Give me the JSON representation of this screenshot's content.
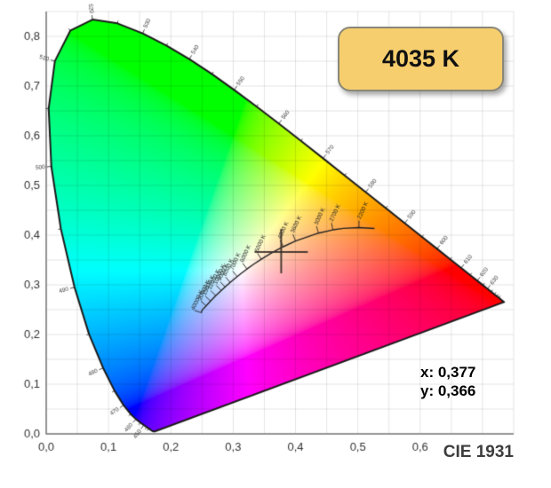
{
  "badge": {
    "label": "4035 K",
    "fill": "#f6ce6e",
    "border": "#8b8878",
    "text_color": "#111111"
  },
  "readout": {
    "x": "x: 0,377",
    "y": "y: 0,366"
  },
  "footer": {
    "label": "CIE 1931"
  },
  "chart_data": {
    "type": "scatter",
    "title": "CIE 1931",
    "xlabel": "",
    "ylabel": "",
    "xlim": [
      0,
      0.75
    ],
    "ylim": [
      0,
      0.85
    ],
    "grid_step": 0.05,
    "grid_on": true,
    "x_ticks": [
      {
        "v": 0.0,
        "label": "0,0"
      },
      {
        "v": 0.1,
        "label": "0,1"
      },
      {
        "v": 0.2,
        "label": "0,2"
      },
      {
        "v": 0.3,
        "label": "0,3"
      },
      {
        "v": 0.4,
        "label": "0,4"
      },
      {
        "v": 0.5,
        "label": "0,5"
      },
      {
        "v": 0.6,
        "label": "0,6"
      }
    ],
    "y_ticks": [
      {
        "v": 0.0,
        "label": "0,0"
      },
      {
        "v": 0.1,
        "label": "0,1"
      },
      {
        "v": 0.2,
        "label": "0,2"
      },
      {
        "v": 0.3,
        "label": "0,3"
      },
      {
        "v": 0.4,
        "label": "0,4"
      },
      {
        "v": 0.5,
        "label": "0,5"
      },
      {
        "v": 0.6,
        "label": "0,6"
      },
      {
        "v": 0.7,
        "label": "0,7"
      },
      {
        "v": 0.8,
        "label": "0,8"
      }
    ],
    "marker": {
      "x": 0.377,
      "y": 0.366,
      "cct_label": "4035 K"
    },
    "planckian_locus": {
      "points": [
        {
          "T": 2000,
          "x": 0.5267,
          "y": 0.4133
        },
        {
          "T": 2200,
          "x": 0.5018,
          "y": 0.4152
        },
        {
          "T": 2500,
          "x": 0.477,
          "y": 0.4137
        },
        {
          "T": 2700,
          "x": 0.4599,
          "y": 0.4106
        },
        {
          "T": 3000,
          "x": 0.4369,
          "y": 0.4041
        },
        {
          "T": 3600,
          "x": 0.4,
          "y": 0.3881
        },
        {
          "T": 4000,
          "x": 0.3805,
          "y": 0.3768
        },
        {
          "T": 4500,
          "x": 0.3608,
          "y": 0.3636
        },
        {
          "T": 5000,
          "x": 0.3451,
          "y": 0.3516
        },
        {
          "T": 5500,
          "x": 0.3324,
          "y": 0.341
        },
        {
          "T": 6000,
          "x": 0.3221,
          "y": 0.3318
        },
        {
          "T": 6500,
          "x": 0.3135,
          "y": 0.3237
        },
        {
          "T": 7000,
          "x": 0.3064,
          "y": 0.3166
        },
        {
          "T": 8000,
          "x": 0.2952,
          "y": 0.3048
        },
        {
          "T": 9000,
          "x": 0.2869,
          "y": 0.2956
        },
        {
          "T": 10000,
          "x": 0.2807,
          "y": 0.2884
        },
        {
          "T": 12000,
          "x": 0.2719,
          "y": 0.2782
        },
        {
          "T": 15000,
          "x": 0.2637,
          "y": 0.2673
        },
        {
          "T": 20000,
          "x": 0.2565,
          "y": 0.2577
        },
        {
          "T": 30000,
          "x": 0.2501,
          "y": 0.2489
        },
        {
          "T": 40000,
          "x": 0.2487,
          "y": 0.2438
        }
      ],
      "tick_labels": [
        {
          "T": 40000,
          "label": "40000 K"
        },
        {
          "T": 20000,
          "label": "20000 K"
        },
        {
          "T": 15000,
          "label": "15000 K"
        },
        {
          "T": 12000,
          "label": "12000 K"
        },
        {
          "T": 10000,
          "label": "10000 K"
        },
        {
          "T": 9000,
          "label": "9000 K"
        },
        {
          "T": 8000,
          "label": "8000 K"
        },
        {
          "T": 7000,
          "label": "7000 K"
        },
        {
          "T": 6000,
          "label": "6000 K"
        },
        {
          "T": 5000,
          "label": "5000 K"
        },
        {
          "T": 4000,
          "label": "4000 K"
        },
        {
          "T": 3600,
          "label": "3600 K"
        },
        {
          "T": 3000,
          "label": "3000 K"
        },
        {
          "T": 2700,
          "label": "2700 K"
        },
        {
          "T": 2200,
          "label": "2200 K"
        }
      ]
    },
    "spectral_locus": [
      [
        380,
        0.1741,
        0.005
      ],
      [
        385,
        0.174,
        0.005
      ],
      [
        390,
        0.1738,
        0.0049
      ],
      [
        395,
        0.1736,
        0.0049
      ],
      [
        400,
        0.1733,
        0.0048
      ],
      [
        405,
        0.173,
        0.0048
      ],
      [
        410,
        0.1726,
        0.0048
      ],
      [
        415,
        0.1721,
        0.0048
      ],
      [
        420,
        0.1714,
        0.0051
      ],
      [
        425,
        0.1703,
        0.0058
      ],
      [
        430,
        0.1689,
        0.0069
      ],
      [
        435,
        0.1669,
        0.0086
      ],
      [
        440,
        0.1644,
        0.0109
      ],
      [
        445,
        0.1611,
        0.0138
      ],
      [
        450,
        0.1566,
        0.0177
      ],
      [
        455,
        0.151,
        0.0227
      ],
      [
        460,
        0.144,
        0.0297
      ],
      [
        465,
        0.1355,
        0.0399
      ],
      [
        470,
        0.1241,
        0.0578
      ],
      [
        475,
        0.1096,
        0.0868
      ],
      [
        480,
        0.0913,
        0.1327
      ],
      [
        485,
        0.0687,
        0.2007
      ],
      [
        490,
        0.0454,
        0.295
      ],
      [
        495,
        0.0235,
        0.4127
      ],
      [
        500,
        0.0082,
        0.5384
      ],
      [
        505,
        0.0039,
        0.6548
      ],
      [
        510,
        0.0139,
        0.7502
      ],
      [
        515,
        0.0389,
        0.812
      ],
      [
        520,
        0.0743,
        0.8338
      ],
      [
        525,
        0.1142,
        0.8262
      ],
      [
        530,
        0.1547,
        0.8059
      ],
      [
        535,
        0.1929,
        0.7816
      ],
      [
        540,
        0.2296,
        0.7543
      ],
      [
        545,
        0.2658,
        0.7243
      ],
      [
        550,
        0.3016,
        0.6923
      ],
      [
        555,
        0.3373,
        0.6589
      ],
      [
        560,
        0.3731,
        0.6245
      ],
      [
        565,
        0.4087,
        0.5896
      ],
      [
        570,
        0.4441,
        0.5547
      ],
      [
        575,
        0.4788,
        0.5202
      ],
      [
        580,
        0.5125,
        0.4866
      ],
      [
        585,
        0.5448,
        0.4544
      ],
      [
        590,
        0.5752,
        0.4242
      ],
      [
        595,
        0.6029,
        0.3965
      ],
      [
        600,
        0.627,
        0.3725
      ],
      [
        605,
        0.6482,
        0.3514
      ],
      [
        610,
        0.6658,
        0.334
      ],
      [
        615,
        0.6801,
        0.3197
      ],
      [
        620,
        0.6915,
        0.3083
      ],
      [
        625,
        0.7006,
        0.2993
      ],
      [
        630,
        0.7079,
        0.292
      ],
      [
        635,
        0.714,
        0.2859
      ],
      [
        640,
        0.719,
        0.2809
      ],
      [
        645,
        0.723,
        0.277
      ],
      [
        650,
        0.726,
        0.274
      ],
      [
        655,
        0.7283,
        0.2717
      ],
      [
        660,
        0.73,
        0.27
      ],
      [
        665,
        0.7311,
        0.2689
      ],
      [
        670,
        0.732,
        0.268
      ],
      [
        675,
        0.7327,
        0.2673
      ],
      [
        680,
        0.7334,
        0.2666
      ],
      [
        685,
        0.734,
        0.266
      ],
      [
        690,
        0.7344,
        0.2656
      ],
      [
        695,
        0.7346,
        0.2654
      ],
      [
        700,
        0.7347,
        0.2653
      ]
    ],
    "wavelength_tick_labels": [
      450,
      460,
      470,
      480,
      490,
      500,
      510,
      520,
      530,
      540,
      550,
      560,
      570,
      580,
      590,
      600,
      610,
      620,
      630
    ],
    "minor_wavelength_tick_step_nm": 5,
    "theme": {
      "grid": "rgba(0,0,0,0.11)",
      "axis": "#777777",
      "outline": "#1a1a1a",
      "planck_stroke": "#222222",
      "small_label": "#3a3a3a",
      "tick_label": "#333333",
      "marker": "rgba(55,45,40,0.9)"
    }
  }
}
